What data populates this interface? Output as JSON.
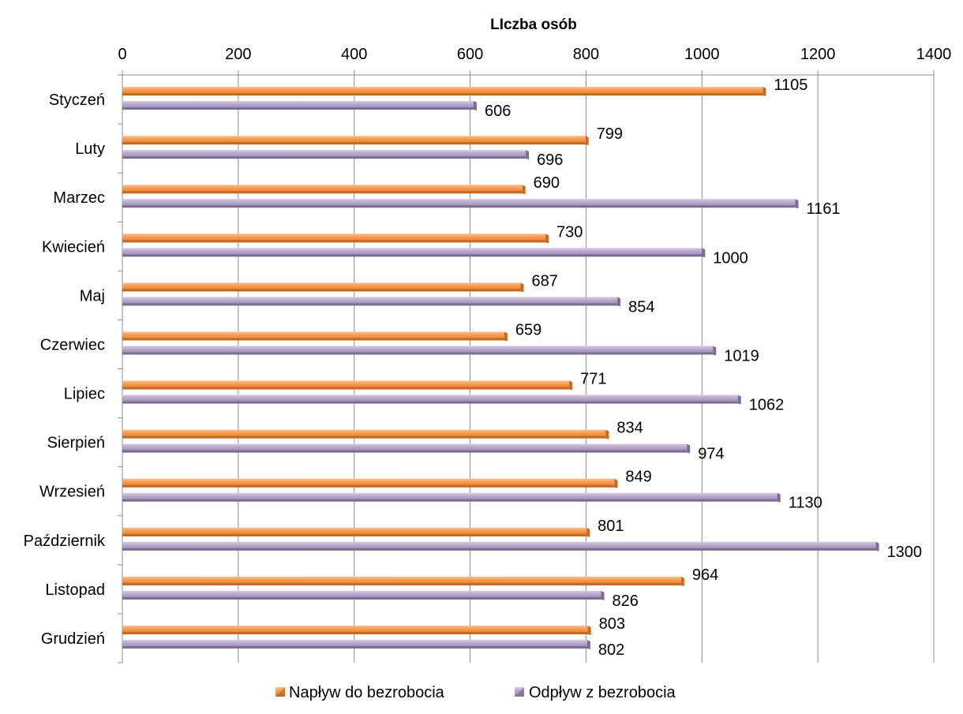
{
  "chart_data": {
    "type": "bar",
    "orientation": "horizontal",
    "title": "LIczba osób",
    "xlim": [
      0,
      1400
    ],
    "xticks": [
      0,
      200,
      400,
      600,
      800,
      1000,
      1200,
      1400
    ],
    "xticks_labels": [
      "0",
      "200",
      "400",
      "600",
      "800",
      "1000",
      "1200",
      "1400"
    ],
    "x_axis_position": "top",
    "grid": true,
    "legend_position": "bottom",
    "categories": [
      "Styczeń",
      "Luty",
      "Marzec",
      "Kwiecień",
      "Maj",
      "Czerwiec",
      "Lipiec",
      "Sierpień",
      "Wrzesień",
      "Październik",
      "Listopad",
      "Grudzień"
    ],
    "series": [
      {
        "name": "Napływ do bezrobocia",
        "color": "#F79646",
        "values": [
          1105,
          799,
          690,
          730,
          687,
          659,
          771,
          834,
          849,
          801,
          964,
          803
        ],
        "value_labels": [
          "1105",
          "799",
          "690",
          "730",
          "687",
          "659",
          "771",
          "834",
          "849",
          "801",
          "964",
          "803"
        ]
      },
      {
        "name": "Odpływ z bezrobocia",
        "color": "#B3A2C7",
        "values": [
          606,
          696,
          1161,
          1000,
          854,
          1019,
          1062,
          974,
          1130,
          1300,
          826,
          802
        ],
        "value_labels": [
          "606",
          "696",
          "1161",
          "1000",
          "854",
          "1019",
          "1062",
          "974",
          "1130",
          "1300",
          "826",
          "802"
        ]
      }
    ]
  }
}
